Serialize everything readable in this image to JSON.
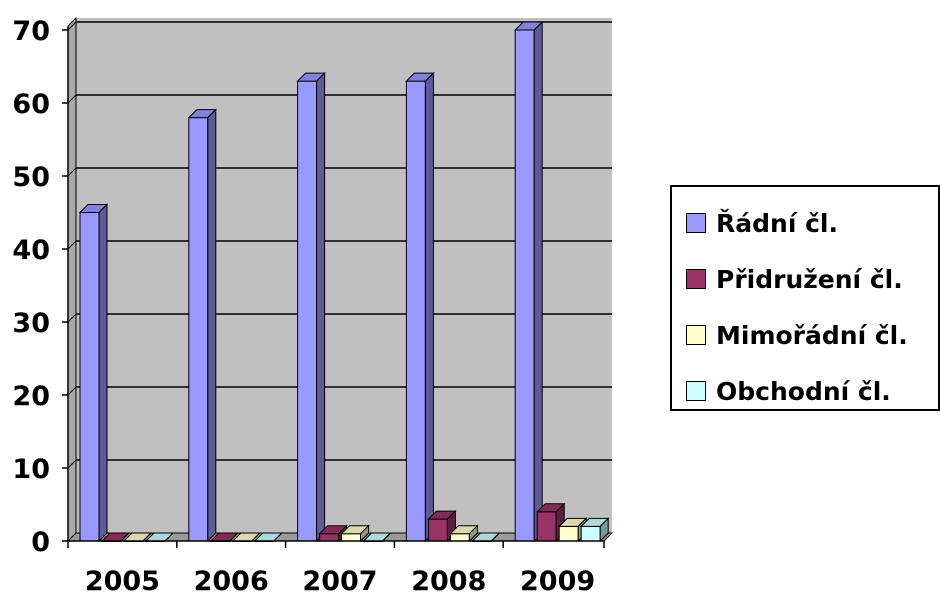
{
  "chart_data": {
    "type": "bar",
    "style": "3d-clustered-column",
    "categories": [
      "2005",
      "2006",
      "2007",
      "2008",
      "2009"
    ],
    "series": [
      {
        "name": "Řádní čl.",
        "color": "#9999FF",
        "values": [
          45,
          58,
          63,
          63,
          70
        ]
      },
      {
        "name": "Přidružení čl.",
        "color": "#993366",
        "values": [
          0,
          0,
          1,
          3,
          4
        ]
      },
      {
        "name": "Mimořádní čl.",
        "color": "#FFFFCC",
        "values": [
          0,
          0,
          1,
          1,
          2
        ]
      },
      {
        "name": "Obchodní čl.",
        "color": "#CCFFFF",
        "values": [
          0,
          0,
          0,
          0,
          2
        ]
      }
    ],
    "y_ticks": [
      "0",
      "10",
      "20",
      "30",
      "40",
      "50",
      "60",
      "70"
    ],
    "ylim": [
      0,
      70
    ],
    "grid": true,
    "plot_background": "#C0C0C0",
    "legend_position": "right"
  }
}
